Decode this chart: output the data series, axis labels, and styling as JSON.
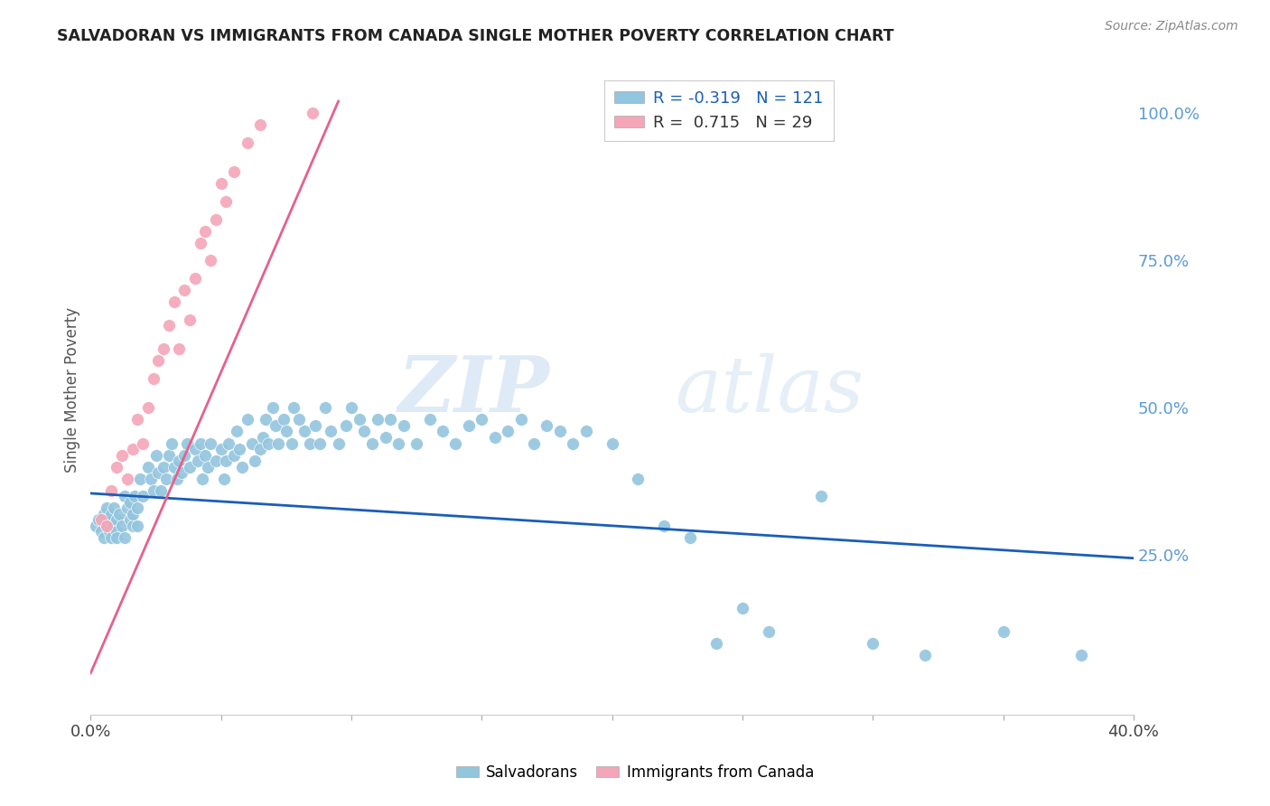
{
  "title": "SALVADORAN VS IMMIGRANTS FROM CANADA SINGLE MOTHER POVERTY CORRELATION CHART",
  "source": "Source: ZipAtlas.com",
  "ylabel": "Single Mother Poverty",
  "ylabel_right_ticks": [
    "25.0%",
    "50.0%",
    "75.0%",
    "100.0%"
  ],
  "ylabel_right_vals": [
    0.25,
    0.5,
    0.75,
    1.0
  ],
  "xlim": [
    0.0,
    0.4
  ],
  "ylim": [
    -0.02,
    1.08
  ],
  "legend1_r": "-0.319",
  "legend1_n": "121",
  "legend2_r": "0.715",
  "legend2_n": "29",
  "color_blue": "#92c5de",
  "color_pink": "#f4a5b8",
  "color_line_blue": "#1a5eb8",
  "color_line_pink": "#e8608a",
  "watermark_zip": "ZIP",
  "watermark_atlas": "atlas",
  "salvadorans_label": "Salvadorans",
  "canada_label": "Immigrants from Canada",
  "blue_line_x": [
    0.0,
    0.4
  ],
  "blue_line_y": [
    0.355,
    0.245
  ],
  "pink_line_x": [
    0.0,
    0.095
  ],
  "pink_line_y": [
    0.05,
    1.02
  ],
  "blue_scatter_x": [
    0.002,
    0.003,
    0.004,
    0.005,
    0.005,
    0.006,
    0.006,
    0.007,
    0.007,
    0.008,
    0.008,
    0.009,
    0.009,
    0.01,
    0.01,
    0.01,
    0.011,
    0.012,
    0.013,
    0.013,
    0.014,
    0.015,
    0.015,
    0.016,
    0.016,
    0.017,
    0.018,
    0.018,
    0.019,
    0.02,
    0.022,
    0.023,
    0.024,
    0.025,
    0.026,
    0.027,
    0.028,
    0.029,
    0.03,
    0.031,
    0.032,
    0.033,
    0.034,
    0.035,
    0.036,
    0.037,
    0.038,
    0.04,
    0.041,
    0.042,
    0.043,
    0.044,
    0.045,
    0.046,
    0.048,
    0.05,
    0.051,
    0.052,
    0.053,
    0.055,
    0.056,
    0.057,
    0.058,
    0.06,
    0.062,
    0.063,
    0.065,
    0.066,
    0.067,
    0.068,
    0.07,
    0.071,
    0.072,
    0.074,
    0.075,
    0.077,
    0.078,
    0.08,
    0.082,
    0.084,
    0.086,
    0.088,
    0.09,
    0.092,
    0.095,
    0.098,
    0.1,
    0.103,
    0.105,
    0.108,
    0.11,
    0.113,
    0.115,
    0.118,
    0.12,
    0.125,
    0.13,
    0.135,
    0.14,
    0.145,
    0.15,
    0.155,
    0.16,
    0.165,
    0.17,
    0.175,
    0.18,
    0.185,
    0.19,
    0.2,
    0.21,
    0.22,
    0.23,
    0.24,
    0.25,
    0.26,
    0.28,
    0.3,
    0.32,
    0.35,
    0.38
  ],
  "blue_scatter_y": [
    0.3,
    0.31,
    0.29,
    0.32,
    0.28,
    0.33,
    0.3,
    0.31,
    0.29,
    0.32,
    0.28,
    0.3,
    0.33,
    0.31,
    0.29,
    0.28,
    0.32,
    0.3,
    0.35,
    0.28,
    0.33,
    0.31,
    0.34,
    0.3,
    0.32,
    0.35,
    0.33,
    0.3,
    0.38,
    0.35,
    0.4,
    0.38,
    0.36,
    0.42,
    0.39,
    0.36,
    0.4,
    0.38,
    0.42,
    0.44,
    0.4,
    0.38,
    0.41,
    0.39,
    0.42,
    0.44,
    0.4,
    0.43,
    0.41,
    0.44,
    0.38,
    0.42,
    0.4,
    0.44,
    0.41,
    0.43,
    0.38,
    0.41,
    0.44,
    0.42,
    0.46,
    0.43,
    0.4,
    0.48,
    0.44,
    0.41,
    0.43,
    0.45,
    0.48,
    0.44,
    0.5,
    0.47,
    0.44,
    0.48,
    0.46,
    0.44,
    0.5,
    0.48,
    0.46,
    0.44,
    0.47,
    0.44,
    0.5,
    0.46,
    0.44,
    0.47,
    0.5,
    0.48,
    0.46,
    0.44,
    0.48,
    0.45,
    0.48,
    0.44,
    0.47,
    0.44,
    0.48,
    0.46,
    0.44,
    0.47,
    0.48,
    0.45,
    0.46,
    0.48,
    0.44,
    0.47,
    0.46,
    0.44,
    0.46,
    0.44,
    0.38,
    0.3,
    0.28,
    0.1,
    0.16,
    0.12,
    0.35,
    0.1,
    0.08,
    0.12,
    0.08
  ],
  "pink_scatter_x": [
    0.004,
    0.006,
    0.008,
    0.01,
    0.012,
    0.014,
    0.016,
    0.018,
    0.02,
    0.022,
    0.024,
    0.026,
    0.028,
    0.03,
    0.032,
    0.034,
    0.036,
    0.038,
    0.04,
    0.042,
    0.044,
    0.046,
    0.048,
    0.05,
    0.052,
    0.055,
    0.06,
    0.065,
    0.085
  ],
  "pink_scatter_y": [
    0.31,
    0.3,
    0.36,
    0.4,
    0.42,
    0.38,
    0.43,
    0.48,
    0.44,
    0.5,
    0.55,
    0.58,
    0.6,
    0.64,
    0.68,
    0.6,
    0.7,
    0.65,
    0.72,
    0.78,
    0.8,
    0.75,
    0.82,
    0.88,
    0.85,
    0.9,
    0.95,
    0.98,
    1.0
  ]
}
